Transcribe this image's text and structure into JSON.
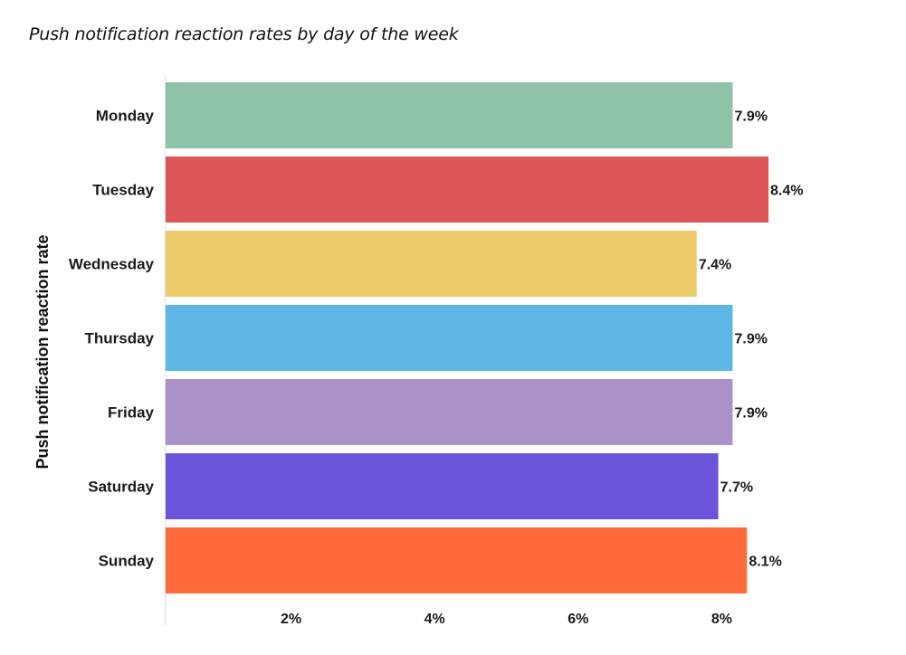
{
  "chart_data": {
    "type": "bar",
    "orientation": "horizontal",
    "title": "Push notification reaction rates by day of the week",
    "ylabel": "Push notification reaction rate",
    "xlabel": "",
    "categories": [
      "Monday",
      "Tuesday",
      "Wednesday",
      "Thursday",
      "Friday",
      "Saturday",
      "Sunday"
    ],
    "values": [
      7.9,
      8.4,
      7.4,
      7.9,
      7.9,
      7.7,
      8.1
    ],
    "value_labels": [
      "7.9%",
      "8.4%",
      "7.4%",
      "7.9%",
      "7.9%",
      "7.7%",
      "8.1%"
    ],
    "colors": [
      "#8fc3a9",
      "#dc5557",
      "#eecb6b",
      "#5eb6e4",
      "#aa91c7",
      "#6b54d9",
      "#ff6c3b"
    ],
    "x_ticks": [
      2,
      4,
      6,
      8
    ],
    "x_tick_labels": [
      "2%",
      "4%",
      "6%",
      "8%"
    ],
    "xlim": [
      0,
      8.6
    ],
    "grid": false,
    "legend": "none"
  }
}
